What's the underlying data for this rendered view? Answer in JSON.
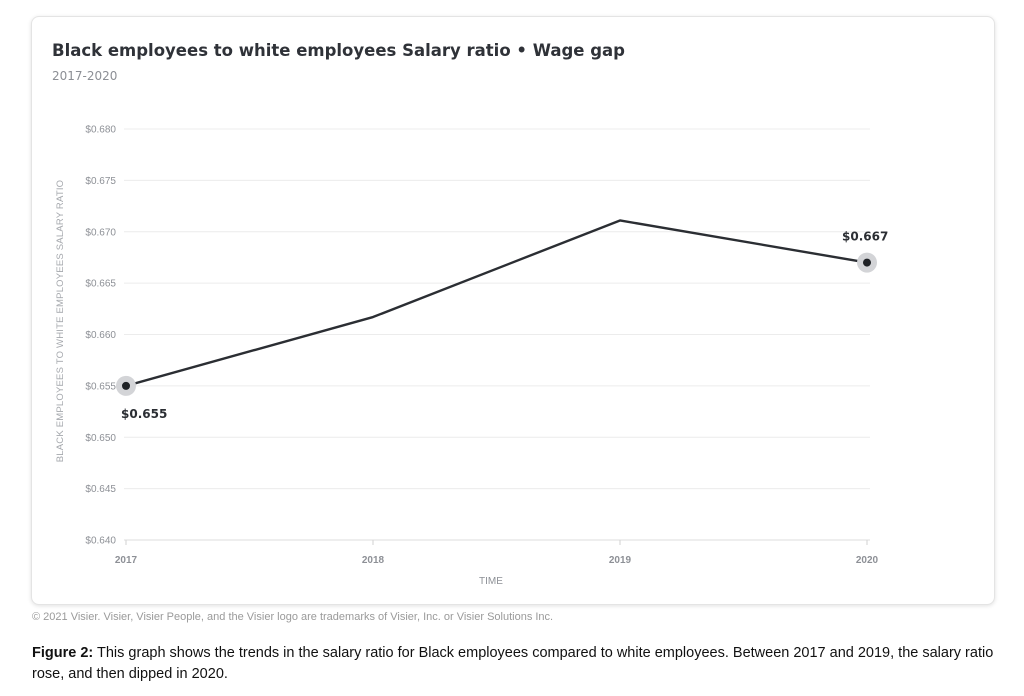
{
  "card": {
    "title": "Black employees to white employees Salary ratio • Wage gap",
    "subtitle": "2017-2020"
  },
  "chart_data": {
    "type": "line",
    "title": "Black employees to white employees Salary ratio • Wage gap",
    "subtitle": "2017-2020",
    "xlabel": "TIME",
    "ylabel": "BLACK EMPLOYEES TO WHITE EMPLOYEES SALARY RATIO",
    "categories": [
      "2017",
      "2018",
      "2019",
      "2020"
    ],
    "values": [
      0.655,
      0.6617,
      0.6711,
      0.667
    ],
    "ylim": [
      0.64,
      0.68
    ],
    "yticks": [
      0.64,
      0.645,
      0.65,
      0.655,
      0.66,
      0.665,
      0.67,
      0.675,
      0.68
    ],
    "ytick_labels": [
      "$0.640",
      "$0.645",
      "$0.650",
      "$0.655",
      "$0.660",
      "$0.665",
      "$0.670",
      "$0.675",
      "$0.680"
    ],
    "annotations": [
      {
        "category": "2017",
        "label": "$0.655",
        "position": "below"
      },
      {
        "category": "2020",
        "label": "$0.667",
        "position": "above"
      }
    ],
    "grid": true,
    "colors": {
      "line": "#2b2e33",
      "highlight": "#d3d4d7",
      "grid": "#ececec",
      "tick_text": "#8d9096"
    }
  },
  "footer": {
    "copyright": "© 2021 Visier. Visier, Visier People, and the Visier logo are trademarks of Visier, Inc. or Visier Solutions Inc."
  },
  "caption": {
    "label": "Figure 2:",
    "text": " This graph shows the trends in the salary ratio for Black employees compared to white employees. Between 2017 and 2019, the salary ratio rose, and then dipped in 2020."
  }
}
